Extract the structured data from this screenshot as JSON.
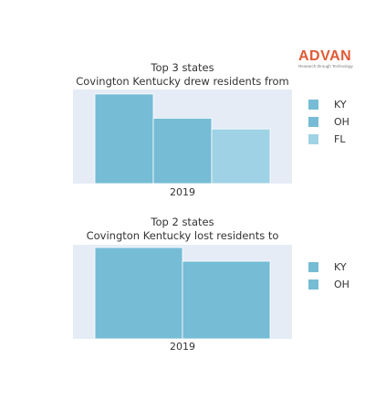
{
  "logo": {
    "name": "ADVAN",
    "tagline": "Research through Technology"
  },
  "chart_data": [
    {
      "type": "bar",
      "title": "Top 3 states",
      "subtitle": "Covington Kentucky drew residents from",
      "categories": [
        "2019"
      ],
      "series": [
        {
          "name": "KY",
          "values": [
            100
          ],
          "color": "#76bcd5"
        },
        {
          "name": "OH",
          "values": [
            73
          ],
          "color": "#76bcd5"
        },
        {
          "name": "FL",
          "values": [
            61
          ],
          "color": "#9fd2e4"
        }
      ],
      "xlabel": "",
      "ylabel": "",
      "ylim": [
        0,
        105
      ],
      "grid": false,
      "legend": "right"
    },
    {
      "type": "bar",
      "title": "Top 2 states",
      "subtitle": "Covington Kentucky lost residents to",
      "categories": [
        "2019"
      ],
      "series": [
        {
          "name": "KY",
          "values": [
            100
          ],
          "color": "#76bcd5"
        },
        {
          "name": "OH",
          "values": [
            85
          ],
          "color": "#76bcd5"
        }
      ],
      "xlabel": "",
      "ylabel": "",
      "ylim": [
        0,
        103
      ],
      "grid": false,
      "legend": "right"
    }
  ]
}
